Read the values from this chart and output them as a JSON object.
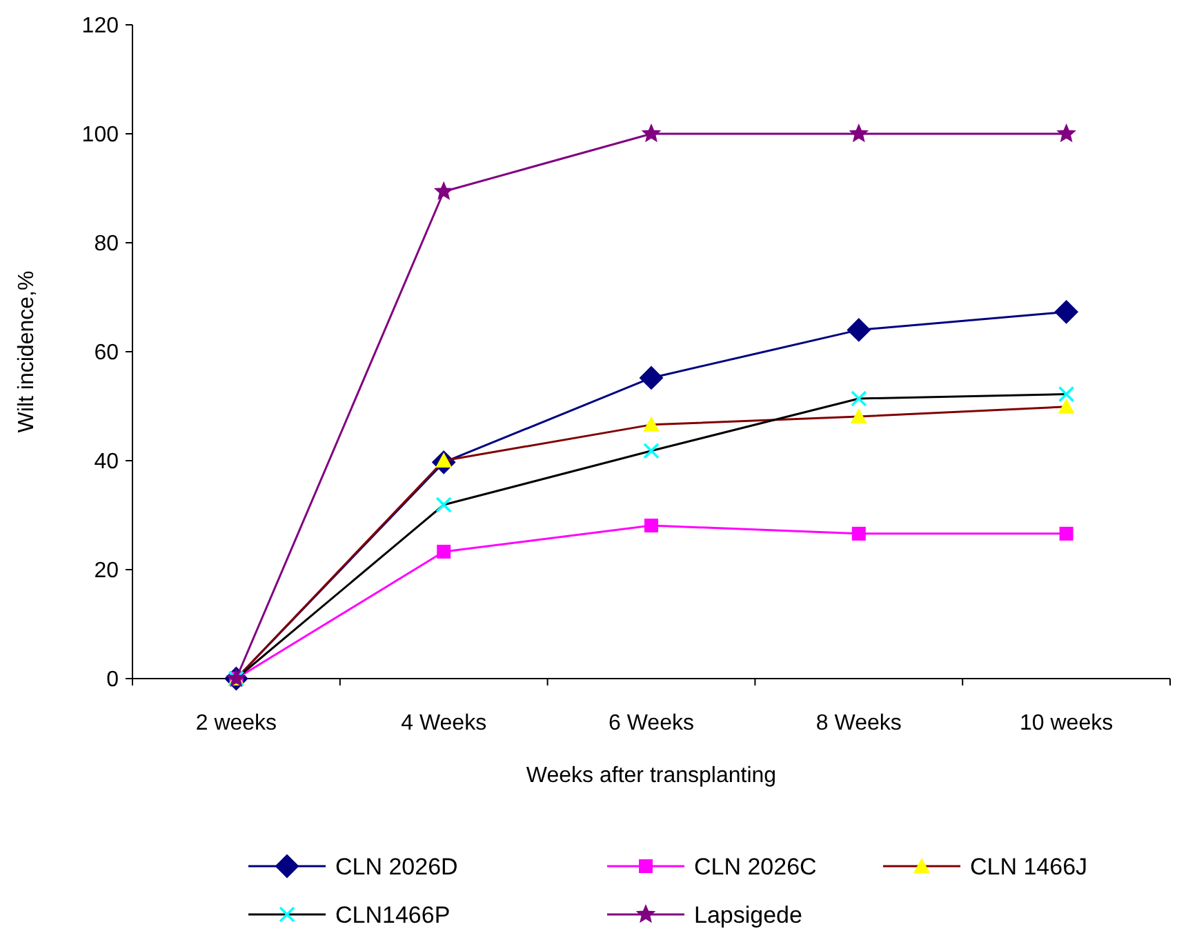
{
  "chart_data": {
    "type": "line",
    "xlabel": "Weeks after transplanting",
    "ylabel": "Wilt incidence,%",
    "categories": [
      "2 weeks",
      "4 Weeks",
      "6 Weeks",
      "8 Weeks",
      "10 weeks"
    ],
    "ylim": [
      0,
      120
    ],
    "yticks": [
      0,
      20,
      40,
      60,
      80,
      100,
      120
    ],
    "grid": false,
    "legend": "bottom",
    "series": [
      {
        "name": "CLN 2026D",
        "color": "#000080",
        "marker": "diamond",
        "values": [
          0,
          39.7,
          55.2,
          64,
          67.3
        ]
      },
      {
        "name": "CLN 2026C",
        "color": "#ff00ff",
        "marker": "square",
        "values": [
          0,
          23.3,
          28.1,
          26.6,
          26.6
        ]
      },
      {
        "name": "CLN 1466J",
        "color": "#800000",
        "colors": [
          "#ffff00",
          "#ffff00",
          "#ffff00",
          "#ffff00",
          "#ffff00"
        ],
        "marker": "triangle",
        "values": [
          0,
          40,
          46.6,
          48.1,
          49.9
        ]
      },
      {
        "name": "CLN1466P",
        "color": "#000000",
        "colors": [
          "#00ffff",
          "#00ffff",
          "#00ffff",
          "#00ffff",
          "#00ffff"
        ],
        "marker": "cross",
        "values": [
          0,
          31.9,
          41.8,
          51.4,
          52.2
        ]
      },
      {
        "name": "Lapsigede",
        "color": "#800080",
        "marker": "star",
        "values": [
          0,
          89.4,
          100,
          100,
          100
        ]
      }
    ]
  }
}
